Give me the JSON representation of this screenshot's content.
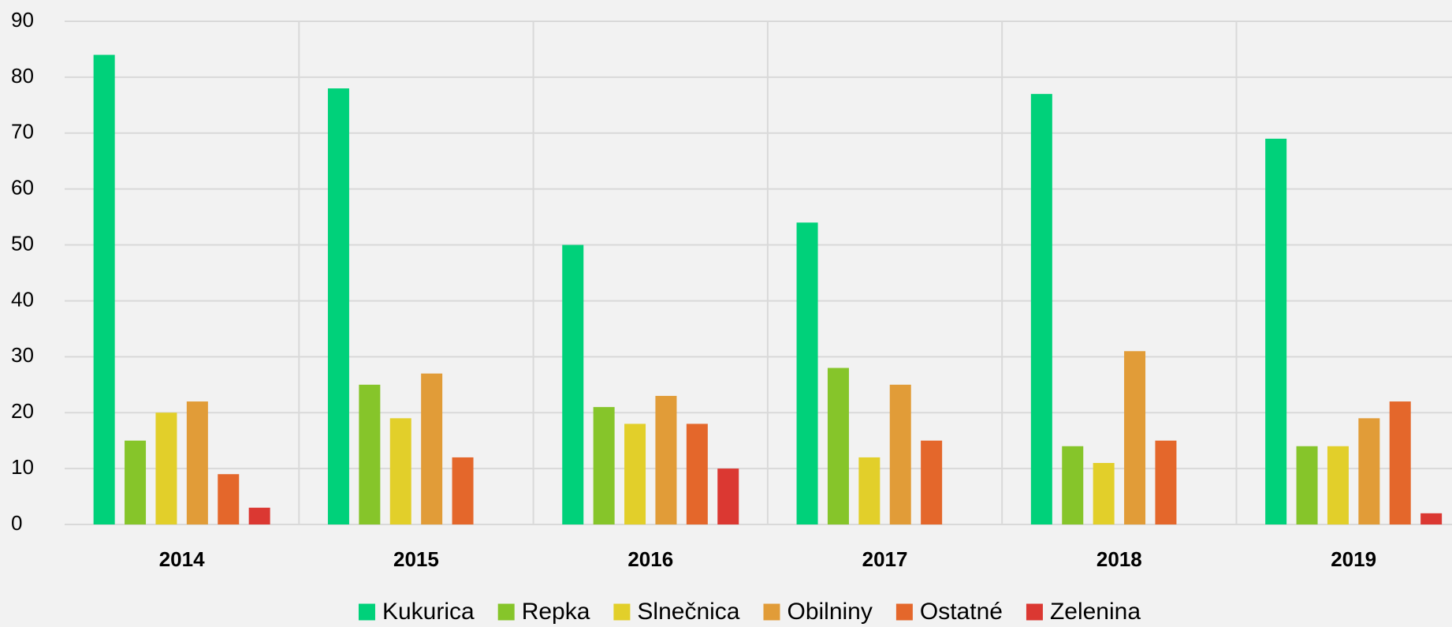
{
  "chart_data": {
    "type": "bar",
    "categories": [
      "2014",
      "2015",
      "2016",
      "2017",
      "2018",
      "2019"
    ],
    "series": [
      {
        "name": "Kukurica",
        "color": "#00d17a",
        "values": [
          84,
          78,
          50,
          54,
          77,
          69
        ]
      },
      {
        "name": "Repka",
        "color": "#86c52a",
        "values": [
          15,
          25,
          21,
          28,
          14,
          14
        ]
      },
      {
        "name": "Slnečnica",
        "color": "#e2cf2a",
        "values": [
          20,
          19,
          18,
          12,
          11,
          14
        ]
      },
      {
        "name": "Obilniny",
        "color": "#e19c38",
        "values": [
          22,
          27,
          23,
          25,
          31,
          19
        ]
      },
      {
        "name": "Ostatné",
        "color": "#e4672b",
        "values": [
          9,
          12,
          18,
          15,
          15,
          22
        ]
      },
      {
        "name": "Zelenina",
        "color": "#db3832",
        "values": [
          3,
          null,
          10,
          null,
          null,
          2
        ]
      }
    ],
    "ylim": [
      0,
      90
    ],
    "yticks": [
      0,
      10,
      20,
      30,
      40,
      50,
      60,
      70,
      80,
      90
    ],
    "grid": true,
    "legend": "bottom"
  }
}
